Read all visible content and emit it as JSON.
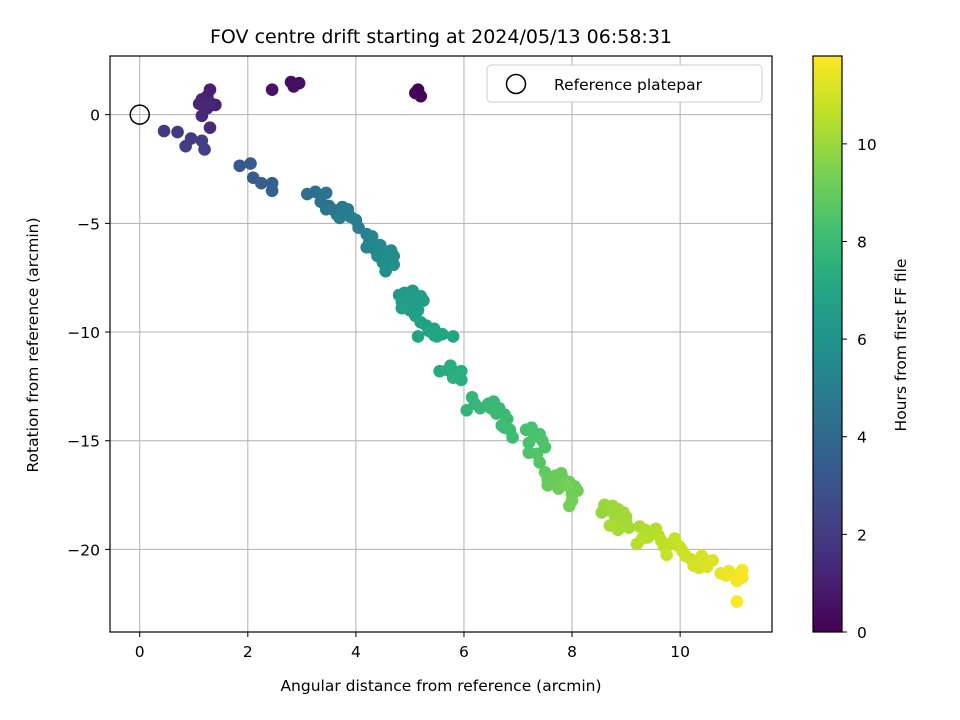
{
  "chart_data": {
    "type": "scatter",
    "title": "FOV centre drift starting at 2024/05/13 06:58:31",
    "xlabel": "Angular distance from reference (arcmin)",
    "ylabel": "Rotation from reference (arcmin)",
    "xlim": [
      -0.55,
      11.7
    ],
    "ylim": [
      -23.8,
      2.7
    ],
    "xticks": [
      0,
      2,
      4,
      6,
      8,
      10
    ],
    "yticks": [
      0,
      -5,
      -10,
      -15,
      -20
    ],
    "grid": true,
    "legend": {
      "placement": "upper right",
      "entries": [
        "Reference platepar"
      ]
    },
    "reference_point": {
      "x": 0,
      "y": 0
    },
    "colorbar": {
      "label": "Hours from first FF file",
      "min": 0,
      "max": 11.8,
      "ticks": [
        0,
        2,
        4,
        6,
        8,
        10
      ],
      "colormap": "viridis"
    },
    "points": [
      {
        "x": 5.15,
        "y": 1.15,
        "t": 0.05
      },
      {
        "x": 5.1,
        "y": 1.0,
        "t": 0.1
      },
      {
        "x": 5.2,
        "y": 0.85,
        "t": 0.15
      },
      {
        "x": 2.8,
        "y": 1.5,
        "t": 0.4
      },
      {
        "x": 2.85,
        "y": 1.3,
        "t": 0.45
      },
      {
        "x": 2.95,
        "y": 1.45,
        "t": 0.5
      },
      {
        "x": 2.45,
        "y": 1.15,
        "t": 0.6
      },
      {
        "x": 1.3,
        "y": 1.15,
        "t": 1.0
      },
      {
        "x": 1.25,
        "y": 0.85,
        "t": 1.05
      },
      {
        "x": 1.15,
        "y": 0.7,
        "t": 1.1
      },
      {
        "x": 1.4,
        "y": 0.45,
        "t": 1.15
      },
      {
        "x": 1.25,
        "y": 0.3,
        "t": 1.2
      },
      {
        "x": 1.1,
        "y": 0.5,
        "t": 1.25
      },
      {
        "x": 1.3,
        "y": 0.55,
        "t": 1.3
      },
      {
        "x": 1.15,
        "y": -0.05,
        "t": 1.35
      },
      {
        "x": 1.3,
        "y": -0.6,
        "t": 1.4
      },
      {
        "x": 0.45,
        "y": -0.75,
        "t": 1.9
      },
      {
        "x": 0.7,
        "y": -0.8,
        "t": 2.0
      },
      {
        "x": 0.95,
        "y": -1.1,
        "t": 2.05
      },
      {
        "x": 0.85,
        "y": -1.45,
        "t": 2.1
      },
      {
        "x": 1.15,
        "y": -1.2,
        "t": 2.15
      },
      {
        "x": 1.2,
        "y": -1.6,
        "t": 2.2
      },
      {
        "x": 1.85,
        "y": -2.35,
        "t": 3.2
      },
      {
        "x": 2.05,
        "y": -2.25,
        "t": 3.3
      },
      {
        "x": 2.1,
        "y": -2.9,
        "t": 3.4
      },
      {
        "x": 2.25,
        "y": -3.15,
        "t": 3.5
      },
      {
        "x": 2.45,
        "y": -3.15,
        "t": 3.6
      },
      {
        "x": 2.45,
        "y": -3.5,
        "t": 3.7
      },
      {
        "x": 3.1,
        "y": -3.65,
        "t": 4.3
      },
      {
        "x": 3.25,
        "y": -3.55,
        "t": 4.4
      },
      {
        "x": 3.45,
        "y": -3.6,
        "t": 4.45
      },
      {
        "x": 3.35,
        "y": -4.0,
        "t": 4.5
      },
      {
        "x": 3.5,
        "y": -4.2,
        "t": 4.55
      },
      {
        "x": 3.6,
        "y": -4.4,
        "t": 4.6
      },
      {
        "x": 3.45,
        "y": -4.35,
        "t": 4.65
      },
      {
        "x": 3.75,
        "y": -4.25,
        "t": 4.7
      },
      {
        "x": 3.65,
        "y": -4.6,
        "t": 4.75
      },
      {
        "x": 3.85,
        "y": -4.35,
        "t": 4.8
      },
      {
        "x": 3.7,
        "y": -4.75,
        "t": 4.85
      },
      {
        "x": 3.9,
        "y": -4.7,
        "t": 4.9
      },
      {
        "x": 4.0,
        "y": -4.85,
        "t": 4.95
      },
      {
        "x": 4.05,
        "y": -5.2,
        "t": 5.0
      },
      {
        "x": 4.2,
        "y": -5.5,
        "t": 5.2
      },
      {
        "x": 4.25,
        "y": -5.85,
        "t": 5.25
      },
      {
        "x": 4.3,
        "y": -5.6,
        "t": 5.3
      },
      {
        "x": 4.2,
        "y": -6.1,
        "t": 5.35
      },
      {
        "x": 4.35,
        "y": -6.2,
        "t": 5.4
      },
      {
        "x": 4.45,
        "y": -6.0,
        "t": 5.45
      },
      {
        "x": 4.55,
        "y": -6.3,
        "t": 5.5
      },
      {
        "x": 4.65,
        "y": -6.25,
        "t": 5.55
      },
      {
        "x": 4.4,
        "y": -6.5,
        "t": 5.6
      },
      {
        "x": 4.6,
        "y": -6.6,
        "t": 5.65
      },
      {
        "x": 4.7,
        "y": -6.5,
        "t": 5.7
      },
      {
        "x": 4.5,
        "y": -6.8,
        "t": 5.75
      },
      {
        "x": 4.7,
        "y": -6.9,
        "t": 5.8
      },
      {
        "x": 4.55,
        "y": -7.2,
        "t": 5.85
      },
      {
        "x": 4.8,
        "y": -8.3,
        "t": 6.3
      },
      {
        "x": 4.9,
        "y": -8.2,
        "t": 6.35
      },
      {
        "x": 5.05,
        "y": -8.1,
        "t": 6.4
      },
      {
        "x": 5.0,
        "y": -8.45,
        "t": 6.45
      },
      {
        "x": 4.85,
        "y": -8.6,
        "t": 6.5
      },
      {
        "x": 5.1,
        "y": -8.55,
        "t": 6.5
      },
      {
        "x": 5.2,
        "y": -8.35,
        "t": 6.55
      },
      {
        "x": 5.25,
        "y": -8.55,
        "t": 6.55
      },
      {
        "x": 4.85,
        "y": -8.9,
        "t": 6.6
      },
      {
        "x": 5.0,
        "y": -9.0,
        "t": 6.6
      },
      {
        "x": 5.15,
        "y": -9.0,
        "t": 6.65
      },
      {
        "x": 5.1,
        "y": -9.25,
        "t": 6.65
      },
      {
        "x": 5.2,
        "y": -9.55,
        "t": 6.7
      },
      {
        "x": 5.3,
        "y": -9.7,
        "t": 6.7
      },
      {
        "x": 5.35,
        "y": -9.95,
        "t": 6.75
      },
      {
        "x": 5.45,
        "y": -9.85,
        "t": 6.75
      },
      {
        "x": 5.45,
        "y": -10.15,
        "t": 6.8
      },
      {
        "x": 5.15,
        "y": -10.2,
        "t": 6.8
      },
      {
        "x": 5.6,
        "y": -10.1,
        "t": 6.85
      },
      {
        "x": 5.8,
        "y": -10.2,
        "t": 6.85
      },
      {
        "x": 5.4,
        "y": -10.0,
        "t": 6.9
      },
      {
        "x": 5.5,
        "y": -10.2,
        "t": 6.9
      },
      {
        "x": 5.55,
        "y": -11.8,
        "t": 7.2
      },
      {
        "x": 5.7,
        "y": -11.75,
        "t": 7.25
      },
      {
        "x": 5.75,
        "y": -11.55,
        "t": 7.3
      },
      {
        "x": 5.8,
        "y": -11.8,
        "t": 7.35
      },
      {
        "x": 5.85,
        "y": -12.0,
        "t": 7.35
      },
      {
        "x": 5.95,
        "y": -11.8,
        "t": 7.4
      },
      {
        "x": 5.95,
        "y": -12.2,
        "t": 7.4
      },
      {
        "x": 5.8,
        "y": -12.1,
        "t": 7.45
      },
      {
        "x": 6.05,
        "y": -13.6,
        "t": 7.7
      },
      {
        "x": 6.15,
        "y": -13.0,
        "t": 7.75
      },
      {
        "x": 6.2,
        "y": -13.3,
        "t": 7.8
      },
      {
        "x": 6.3,
        "y": -13.5,
        "t": 7.8
      },
      {
        "x": 6.45,
        "y": -13.3,
        "t": 7.85
      },
      {
        "x": 6.5,
        "y": -13.5,
        "t": 7.85
      },
      {
        "x": 6.55,
        "y": -13.2,
        "t": 7.9
      },
      {
        "x": 6.65,
        "y": -13.5,
        "t": 7.9
      },
      {
        "x": 6.6,
        "y": -13.75,
        "t": 7.95
      },
      {
        "x": 6.75,
        "y": -13.8,
        "t": 7.95
      },
      {
        "x": 6.8,
        "y": -14.0,
        "t": 8.0
      },
      {
        "x": 6.7,
        "y": -14.3,
        "t": 8.0
      },
      {
        "x": 6.85,
        "y": -14.5,
        "t": 8.05
      },
      {
        "x": 6.9,
        "y": -14.85,
        "t": 8.05
      },
      {
        "x": 6.75,
        "y": -14.4,
        "t": 8.1
      },
      {
        "x": 7.15,
        "y": -14.5,
        "t": 8.3
      },
      {
        "x": 7.25,
        "y": -14.4,
        "t": 8.35
      },
      {
        "x": 7.3,
        "y": -14.8,
        "t": 8.35
      },
      {
        "x": 7.2,
        "y": -15.1,
        "t": 8.4
      },
      {
        "x": 7.4,
        "y": -14.7,
        "t": 8.4
      },
      {
        "x": 7.45,
        "y": -15.0,
        "t": 8.45
      },
      {
        "x": 7.5,
        "y": -15.3,
        "t": 8.5
      },
      {
        "x": 7.2,
        "y": -15.55,
        "t": 8.5
      },
      {
        "x": 7.35,
        "y": -15.6,
        "t": 8.55
      },
      {
        "x": 7.4,
        "y": -16.0,
        "t": 8.6
      },
      {
        "x": 7.5,
        "y": -16.45,
        "t": 8.9
      },
      {
        "x": 7.55,
        "y": -16.8,
        "t": 8.95
      },
      {
        "x": 7.55,
        "y": -17.05,
        "t": 9.0
      },
      {
        "x": 7.65,
        "y": -16.9,
        "t": 9.0
      },
      {
        "x": 7.7,
        "y": -16.6,
        "t": 9.05
      },
      {
        "x": 7.8,
        "y": -16.5,
        "t": 9.05
      },
      {
        "x": 7.85,
        "y": -16.8,
        "t": 9.1
      },
      {
        "x": 7.95,
        "y": -16.9,
        "t": 9.1
      },
      {
        "x": 7.75,
        "y": -17.2,
        "t": 9.15
      },
      {
        "x": 8.05,
        "y": -17.1,
        "t": 9.15
      },
      {
        "x": 8.0,
        "y": -17.45,
        "t": 9.2
      },
      {
        "x": 8.1,
        "y": -17.3,
        "t": 9.2
      },
      {
        "x": 8.0,
        "y": -17.75,
        "t": 9.25
      },
      {
        "x": 7.95,
        "y": -18.0,
        "t": 9.25
      },
      {
        "x": 7.9,
        "y": -17.05,
        "t": 9.3
      },
      {
        "x": 8.55,
        "y": -18.3,
        "t": 9.9
      },
      {
        "x": 8.6,
        "y": -17.95,
        "t": 9.95
      },
      {
        "x": 8.75,
        "y": -18.0,
        "t": 10.0
      },
      {
        "x": 8.7,
        "y": -18.2,
        "t": 10.05
      },
      {
        "x": 8.85,
        "y": -18.15,
        "t": 10.05
      },
      {
        "x": 8.95,
        "y": -18.3,
        "t": 10.1
      },
      {
        "x": 8.8,
        "y": -18.5,
        "t": 10.1
      },
      {
        "x": 9.0,
        "y": -18.5,
        "t": 10.15
      },
      {
        "x": 9.0,
        "y": -18.75,
        "t": 10.15
      },
      {
        "x": 8.85,
        "y": -18.85,
        "t": 10.2
      },
      {
        "x": 9.05,
        "y": -19.0,
        "t": 10.2
      },
      {
        "x": 8.85,
        "y": -19.1,
        "t": 10.25
      },
      {
        "x": 8.7,
        "y": -18.9,
        "t": 10.25
      },
      {
        "x": 9.25,
        "y": -18.95,
        "t": 10.3
      },
      {
        "x": 9.35,
        "y": -19.1,
        "t": 10.35
      },
      {
        "x": 9.45,
        "y": -19.25,
        "t": 10.4
      },
      {
        "x": 9.4,
        "y": -19.45,
        "t": 10.45
      },
      {
        "x": 9.55,
        "y": -19.05,
        "t": 10.45
      },
      {
        "x": 9.3,
        "y": -19.5,
        "t": 10.5
      },
      {
        "x": 9.2,
        "y": -19.75,
        "t": 10.5
      },
      {
        "x": 9.6,
        "y": -19.35,
        "t": 10.55
      },
      {
        "x": 9.65,
        "y": -19.6,
        "t": 10.6
      },
      {
        "x": 9.7,
        "y": -19.85,
        "t": 10.6
      },
      {
        "x": 9.85,
        "y": -19.7,
        "t": 10.65
      },
      {
        "x": 9.9,
        "y": -19.5,
        "t": 10.7
      },
      {
        "x": 9.95,
        "y": -19.8,
        "t": 10.75
      },
      {
        "x": 10.0,
        "y": -19.9,
        "t": 10.8
      },
      {
        "x": 10.05,
        "y": -20.1,
        "t": 10.85
      },
      {
        "x": 9.75,
        "y": -20.25,
        "t": 10.85
      },
      {
        "x": 10.1,
        "y": -20.3,
        "t": 10.9
      },
      {
        "x": 10.2,
        "y": -20.45,
        "t": 10.95
      },
      {
        "x": 10.25,
        "y": -20.75,
        "t": 11.0
      },
      {
        "x": 10.3,
        "y": -20.6,
        "t": 11.0
      },
      {
        "x": 10.35,
        "y": -20.85,
        "t": 11.05
      },
      {
        "x": 10.45,
        "y": -20.5,
        "t": 11.05
      },
      {
        "x": 10.55,
        "y": -20.55,
        "t": 11.1
      },
      {
        "x": 10.4,
        "y": -20.3,
        "t": 11.1
      },
      {
        "x": 10.6,
        "y": -20.5,
        "t": 11.15
      },
      {
        "x": 10.5,
        "y": -20.8,
        "t": 11.15
      },
      {
        "x": 10.75,
        "y": -21.1,
        "t": 11.4
      },
      {
        "x": 10.85,
        "y": -21.2,
        "t": 11.45
      },
      {
        "x": 10.9,
        "y": -21.0,
        "t": 11.5
      },
      {
        "x": 11.0,
        "y": -21.2,
        "t": 11.55
      },
      {
        "x": 11.05,
        "y": -21.45,
        "t": 11.6
      },
      {
        "x": 11.15,
        "y": -21.3,
        "t": 11.65
      },
      {
        "x": 11.15,
        "y": -20.95,
        "t": 11.7
      },
      {
        "x": 11.05,
        "y": -22.4,
        "t": 11.75
      }
    ]
  }
}
